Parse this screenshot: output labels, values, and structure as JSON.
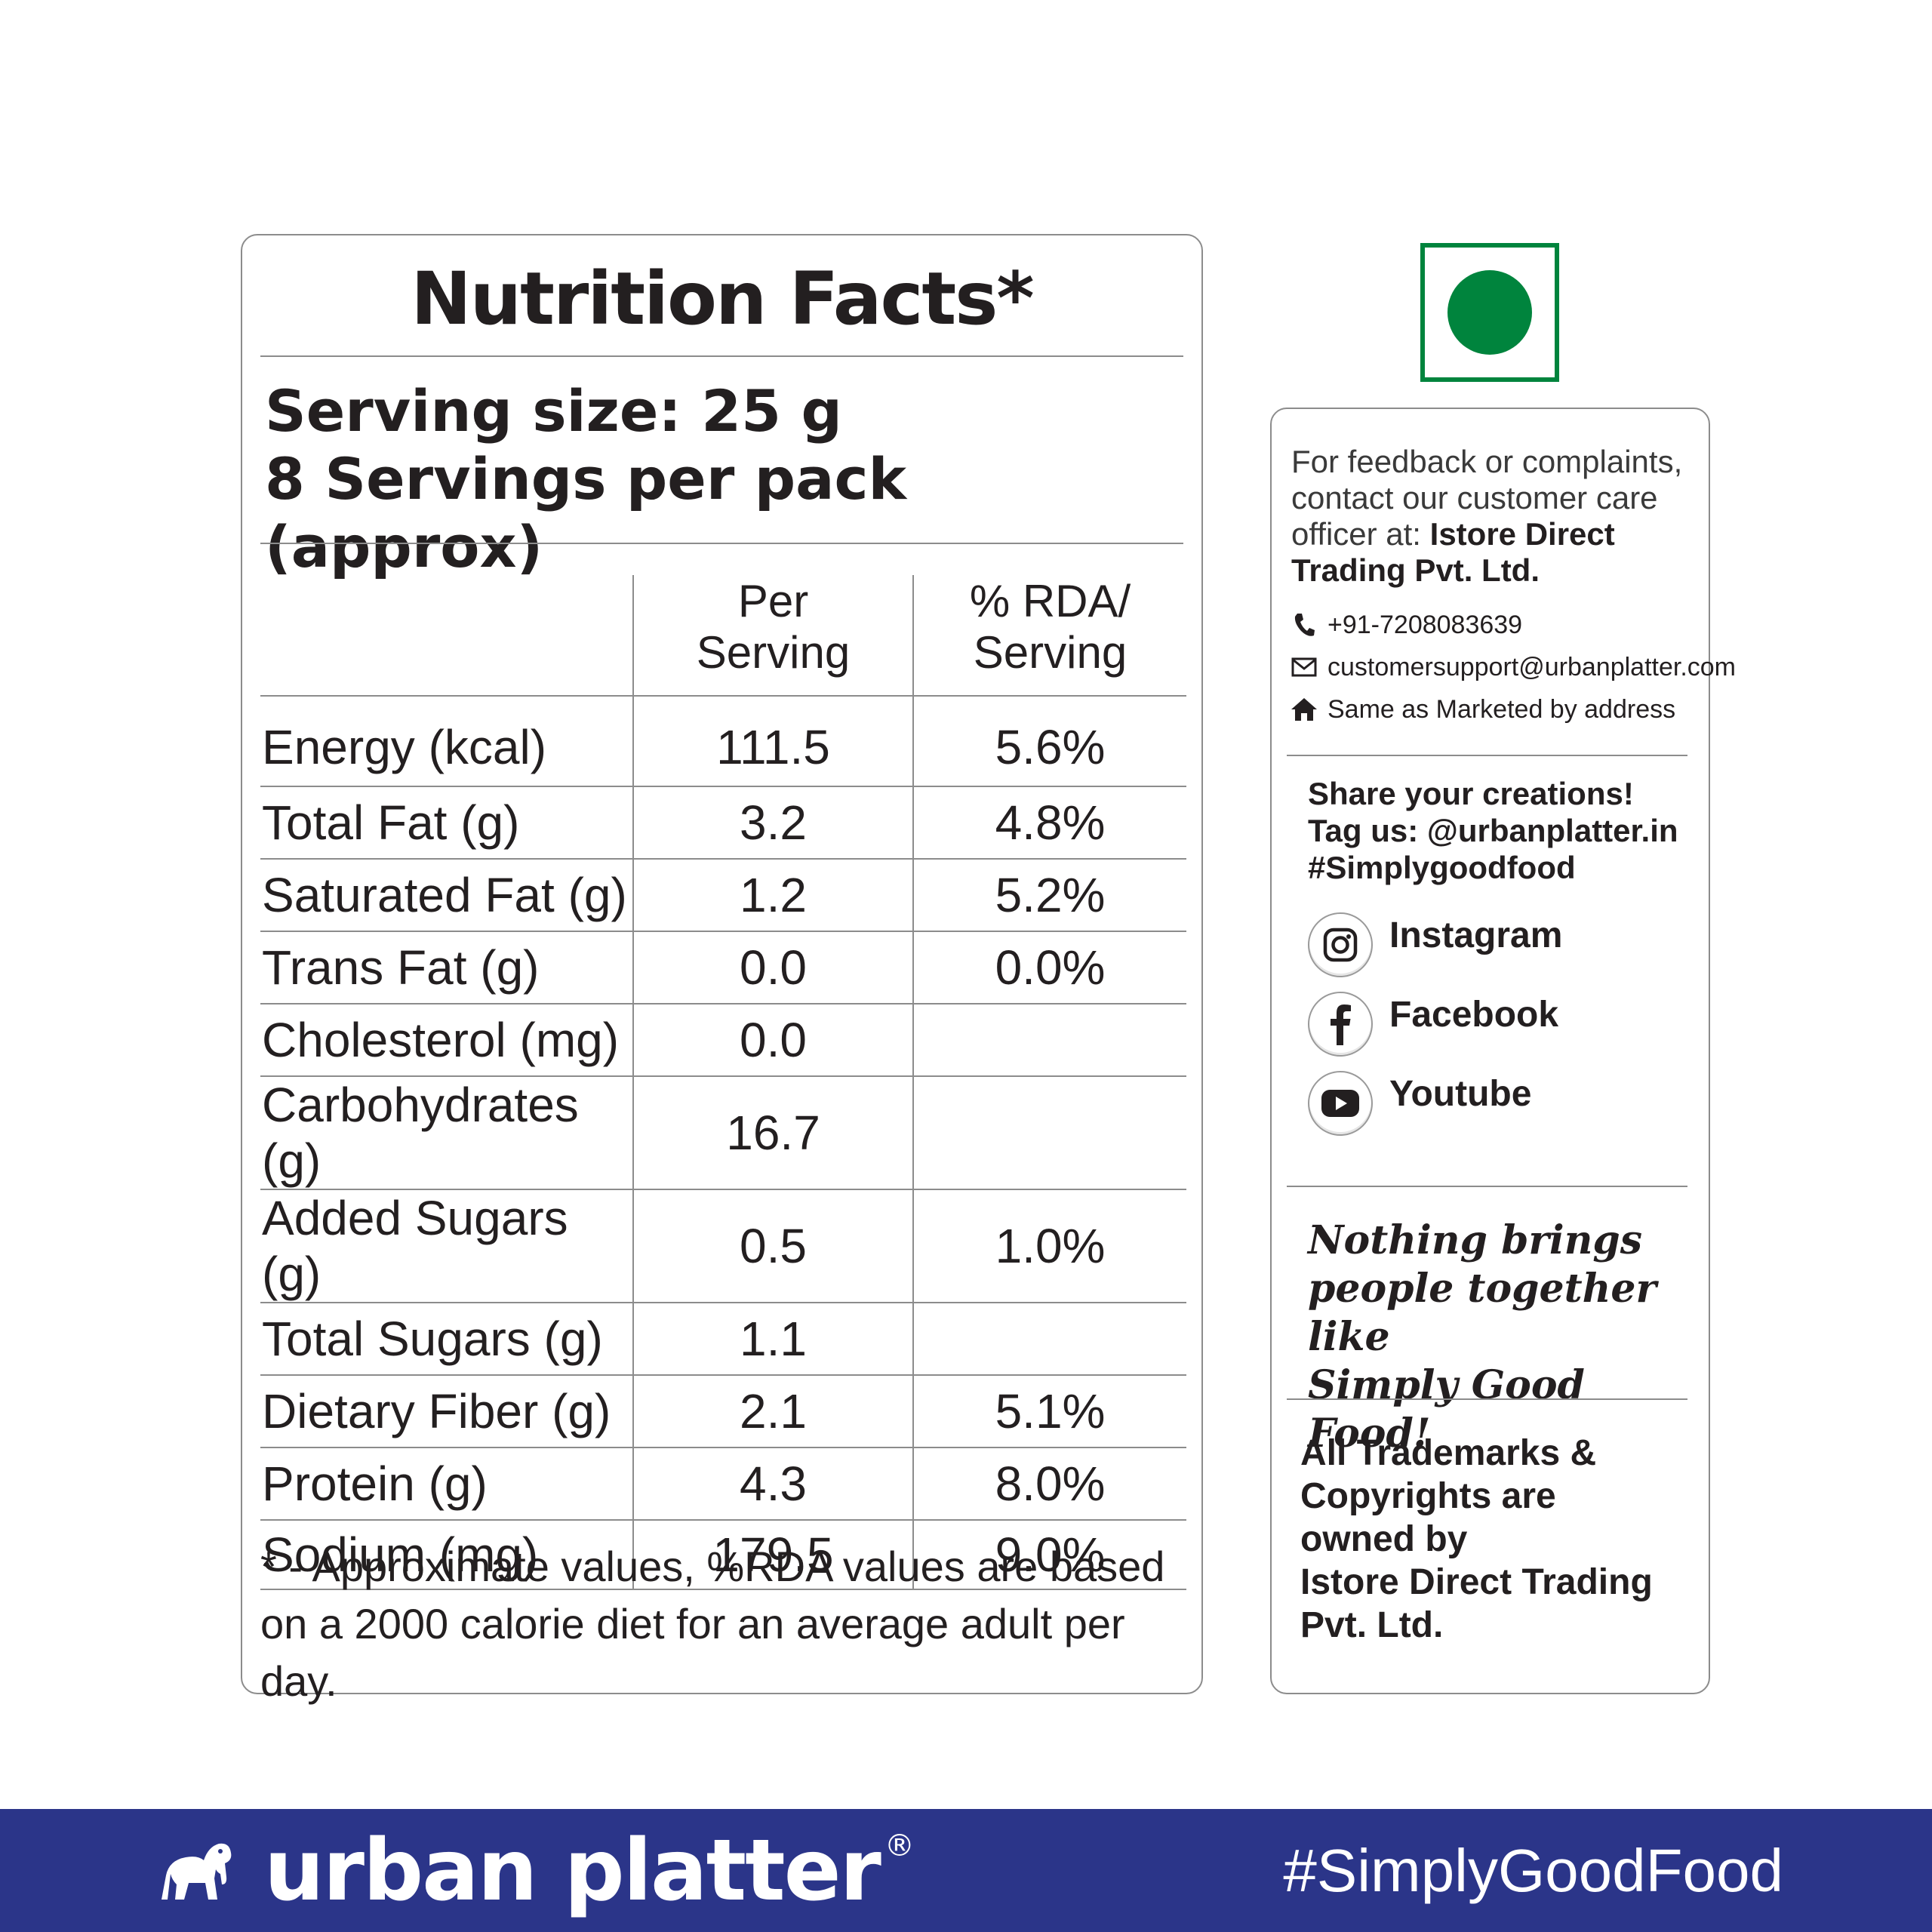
{
  "nutrition": {
    "title": "Nutrition Facts*",
    "serving_size": "Serving size: 25 g",
    "servings_per_pack": "8 Servings per pack (approx)",
    "headers": {
      "per_serving": [
        "Per",
        "Serving"
      ],
      "rda": [
        "% RDA/",
        "Serving"
      ]
    },
    "rows": [
      {
        "name": "Energy (kcal)",
        "per": "111.5",
        "rda": "5.6%"
      },
      {
        "name": "Total Fat (g)",
        "per": "3.2",
        "rda": "4.8%"
      },
      {
        "name": "Saturated Fat (g)",
        "per": "1.2",
        "rda": "5.2%"
      },
      {
        "name": "Trans Fat (g)",
        "per": "0.0",
        "rda": "0.0%"
      },
      {
        "name": "Cholesterol (mg)",
        "per": "0.0",
        "rda": ""
      },
      {
        "name": "Carbohydrates (g)",
        "per": "16.7",
        "rda": ""
      },
      {
        "name": "Added Sugars (g)",
        "per": "0.5",
        "rda": "1.0%"
      },
      {
        "name": "Total Sugars (g)",
        "per": "1.1",
        "rda": ""
      },
      {
        "name": "Dietary Fiber (g)",
        "per": "2.1",
        "rda": "5.1%"
      },
      {
        "name": "Protein (g)",
        "per": "4.3",
        "rda": "8.0%"
      },
      {
        "name": "Sodium (mg)",
        "per": "179.5",
        "rda": "9.0%"
      }
    ],
    "footnote_line1": "* - Approximate values, %RDA values are based",
    "footnote_line2": "on a 2000 calorie diet for an average adult per day."
  },
  "veg_mark": {
    "color": "#00843d"
  },
  "contact": {
    "feedback_text": "For feedback or complaints, contact our customer care officer at: ",
    "company": "Istore Direct Trading Pvt. Ltd.",
    "phone": "+91-7208083639",
    "email": "customersupport@urbanplatter.com",
    "address": "Same as Marketed by address",
    "icons": [
      "phone-icon",
      "mail-icon",
      "home-icon"
    ]
  },
  "social": {
    "share_line1": "Share your creations!",
    "share_line2": "Tag us: @urbanplatter.in",
    "share_line3": "#Simplygoodfood",
    "items": [
      {
        "label": "Instagram",
        "icon": "instagram-icon"
      },
      {
        "label": "Facebook",
        "icon": "facebook-icon"
      },
      {
        "label": "Youtube",
        "icon": "youtube-icon"
      }
    ]
  },
  "tagline": [
    "Nothing brings",
    "people together like",
    "Simply Good Food!"
  ],
  "trademark": [
    "All Trademarks &",
    "Copyrights are",
    "owned by",
    "Istore Direct Trading",
    "Pvt. Ltd."
  ],
  "brand": {
    "name": "urban platter",
    "reg": "®",
    "hashtag": "#SimplyGoodFood",
    "band_color": "#2b3589",
    "logo_icon": "elephant-icon"
  }
}
